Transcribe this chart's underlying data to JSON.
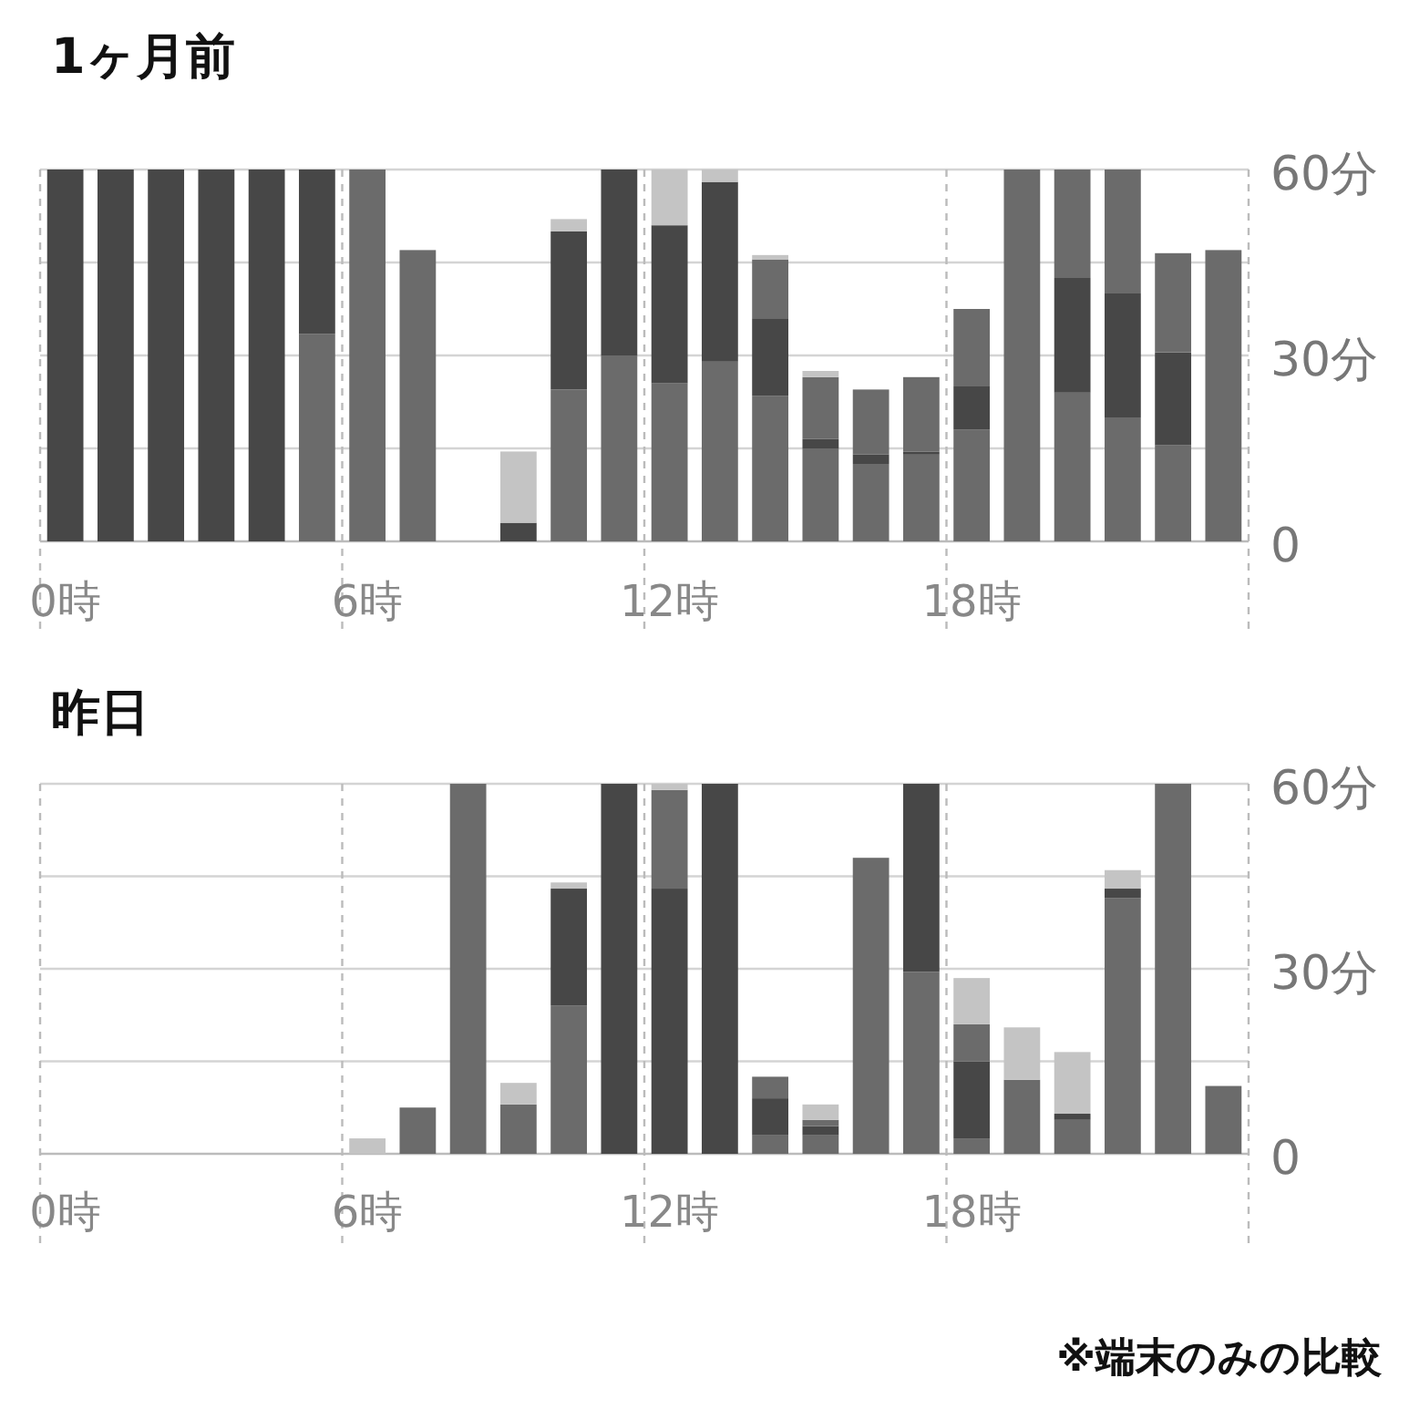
{
  "chart_data": [
    {
      "type": "bar",
      "title": "1ヶ月前",
      "stacked": true,
      "grid": true,
      "categories": [
        "0時",
        null,
        null,
        null,
        null,
        null,
        "6時",
        null,
        null,
        null,
        null,
        null,
        "12時",
        null,
        null,
        null,
        null,
        null,
        "18時",
        null,
        null,
        null,
        null,
        null
      ],
      "ylim": [
        0,
        60
      ],
      "yticks": [
        0,
        {
          "value": 15,
          "label": null
        },
        {
          "value": 30,
          "label": "30分"
        },
        {
          "value": 45,
          "label": null
        },
        {
          "value": 60,
          "label": "60分"
        }
      ],
      "series": [
        {
          "color": "#6b6b6b",
          "values": [
            0,
            0,
            0,
            0,
            0,
            33.5,
            60,
            47,
            0,
            0,
            24.5,
            30,
            25.5,
            29,
            23.5,
            15,
            12.5,
            14,
            18,
            60,
            24,
            20,
            15.5,
            47
          ]
        },
        {
          "color": "#474747",
          "values": [
            60,
            60,
            60,
            60,
            60,
            26.5,
            0,
            0,
            0,
            3,
            25.5,
            30,
            25.5,
            29,
            12.5,
            1.5,
            1.5,
            0.5,
            7,
            0,
            18.5,
            20,
            15,
            0
          ]
        },
        {
          "color": "#6b6b6b",
          "values": [
            0,
            0,
            0,
            0,
            0,
            0,
            0,
            0,
            0,
            0,
            0,
            0,
            0,
            0,
            9.5,
            10,
            10.5,
            12,
            12.5,
            0,
            17.5,
            20,
            16,
            0
          ]
        },
        {
          "color": "#c4c4c4",
          "values": [
            0,
            0,
            0,
            0,
            0,
            0,
            0,
            0,
            0,
            11.5,
            2,
            0,
            9,
            2,
            0.7,
            1,
            0,
            0,
            0,
            0,
            0,
            0,
            0,
            0
          ]
        }
      ]
    },
    {
      "type": "bar",
      "title": "昨日",
      "stacked": true,
      "grid": true,
      "categories": [
        "0時",
        null,
        null,
        null,
        null,
        null,
        "6時",
        null,
        null,
        null,
        null,
        null,
        "12時",
        null,
        null,
        null,
        null,
        null,
        "18時",
        null,
        null,
        null,
        null,
        null
      ],
      "ylim": [
        0,
        60
      ],
      "yticks": [
        0,
        {
          "value": 15,
          "label": null
        },
        {
          "value": 30,
          "label": "30分"
        },
        {
          "value": 45,
          "label": null
        },
        {
          "value": 60,
          "label": "60分"
        }
      ],
      "annotations": [
        "※端末のみの比較"
      ],
      "series": [
        {
          "color": "#6b6b6b",
          "values": [
            0,
            0,
            0,
            0,
            0,
            0,
            0,
            7.5,
            60,
            8,
            24,
            0,
            0,
            0,
            3,
            3,
            48,
            29.5,
            2.5,
            12,
            5.5,
            41.5,
            60,
            11
          ]
        },
        {
          "color": "#474747",
          "values": [
            0,
            0,
            0,
            0,
            0,
            0,
            0,
            0,
            0,
            0,
            19,
            60,
            43,
            60,
            6,
            1.5,
            0,
            30.5,
            12.5,
            0,
            1,
            1.5,
            0,
            0
          ]
        },
        {
          "color": "#6b6b6b",
          "values": [
            0,
            0,
            0,
            0,
            0,
            0,
            0,
            0,
            0,
            0,
            0,
            0,
            16,
            0,
            3.5,
            1,
            0,
            0,
            6,
            0,
            0,
            0,
            0,
            0
          ]
        },
        {
          "color": "#c4c4c4",
          "values": [
            0,
            0,
            0,
            0,
            0,
            0,
            2.5,
            0,
            0,
            3.5,
            1,
            0,
            1,
            0,
            0,
            2.5,
            0,
            0,
            7.5,
            8.5,
            10,
            3,
            0,
            0
          ]
        }
      ]
    }
  ]
}
